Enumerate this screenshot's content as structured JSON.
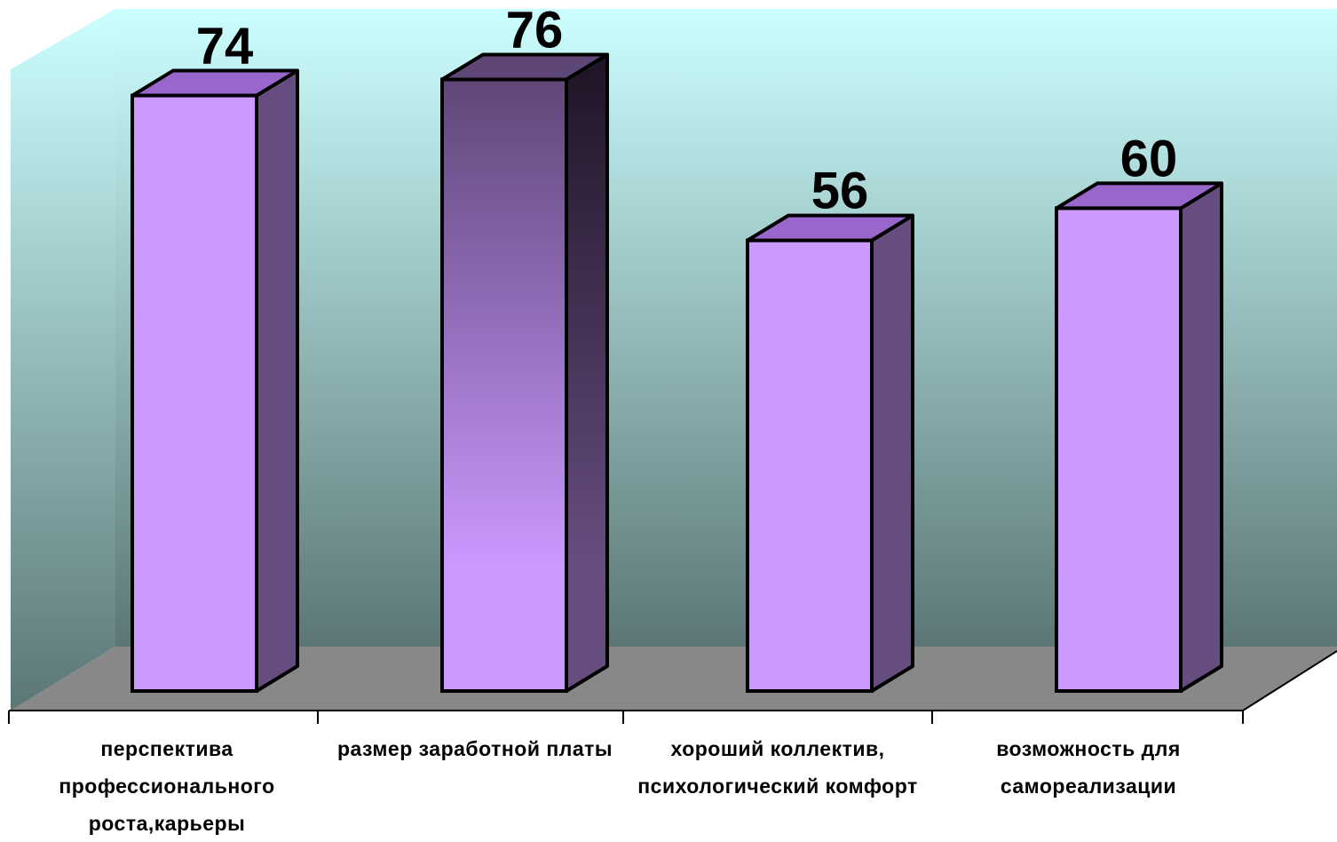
{
  "chart_data": {
    "type": "bar",
    "style": "3d-column",
    "categories": [
      "перспектива профессионального роста,карьеры",
      "размер заработной платы",
      "хороший коллектив, психологический комфорт",
      "возможность для самореализации"
    ],
    "values": [
      74,
      76,
      56,
      60
    ],
    "highlighted_index": 1,
    "title": "",
    "xlabel": "",
    "ylabel": "",
    "grid": false,
    "legend": "none",
    "colors": {
      "bar_front": "#cc99ff",
      "bar_side": "#664d80",
      "bar_top": "#9966cc",
      "highlight_top": "#5e4777",
      "highlight_mid": "#9a74c4",
      "wall_top": "#ccffff",
      "wall_bottom": "#5c7676",
      "floor": "#888888",
      "outline": "#000000"
    }
  }
}
